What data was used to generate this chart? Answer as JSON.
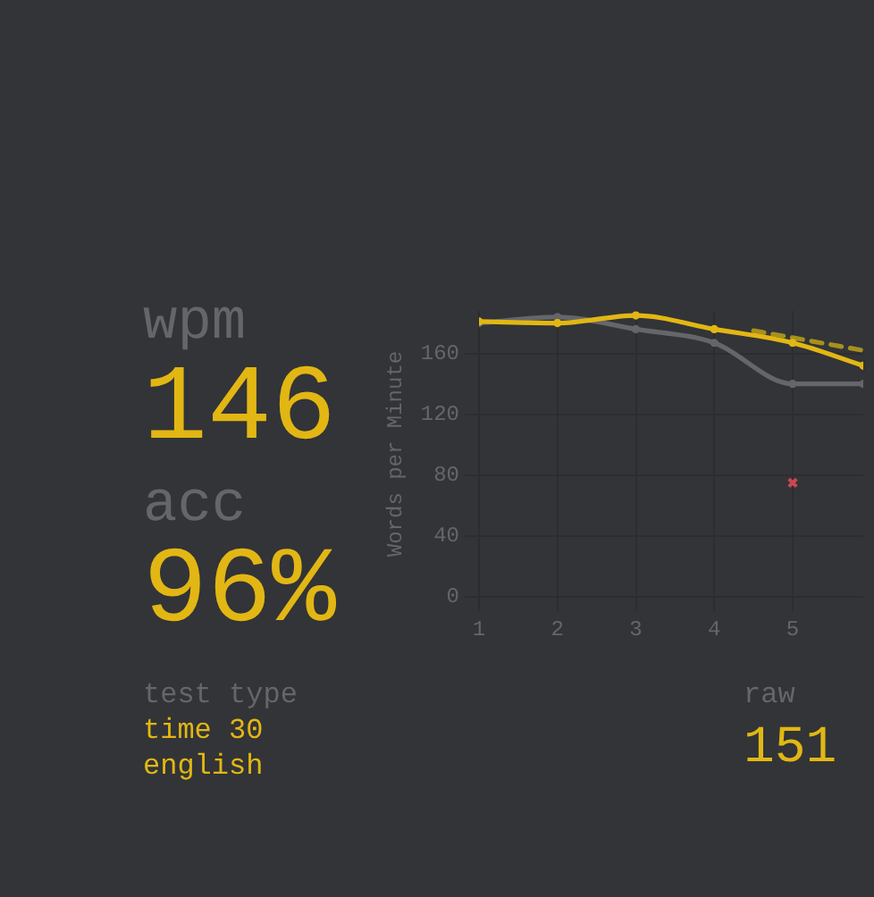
{
  "chart_data": [
    {
      "type": "other",
      "title": "wpm",
      "annotations": [
        "146"
      ]
    },
    {
      "type": "other",
      "title": "acc",
      "annotations": [
        "96%"
      ]
    },
    {
      "type": "line",
      "ylabel": "Words per Minute",
      "xlim": [
        1,
        5.9
      ],
      "xticks": [
        1,
        2,
        3,
        4,
        5
      ],
      "ylim": [
        0,
        188
      ],
      "yticks": [
        0,
        40,
        80,
        120,
        160
      ],
      "grid": true,
      "legend": false,
      "marker": "circle",
      "series": [
        {
          "color": "#e2b714",
          "x": [
            1,
            2,
            3,
            4,
            5,
            5.9
          ],
          "values": [
            181,
            180,
            185,
            176,
            167,
            152
          ]
        },
        {
          "color": "#646669",
          "x": [
            1,
            2,
            3,
            4,
            5,
            5.9
          ],
          "values": [
            180,
            184,
            176,
            167,
            140,
            140
          ]
        },
        {
          "color": "#a8901e",
          "line_style": "dashed",
          "marker": "none",
          "x": [
            4.5,
            5.9
          ],
          "values": [
            175,
            162
          ]
        },
        {
          "type": "scatter",
          "marker": "cross",
          "color": "#ca4754",
          "x": [
            5
          ],
          "values": [
            75
          ]
        }
      ]
    },
    {
      "type": "other",
      "title": "test type",
      "annotations": [
        "time 30",
        "english"
      ]
    },
    {
      "type": "other",
      "title": "raw",
      "annotations": [
        "151"
      ]
    }
  ]
}
